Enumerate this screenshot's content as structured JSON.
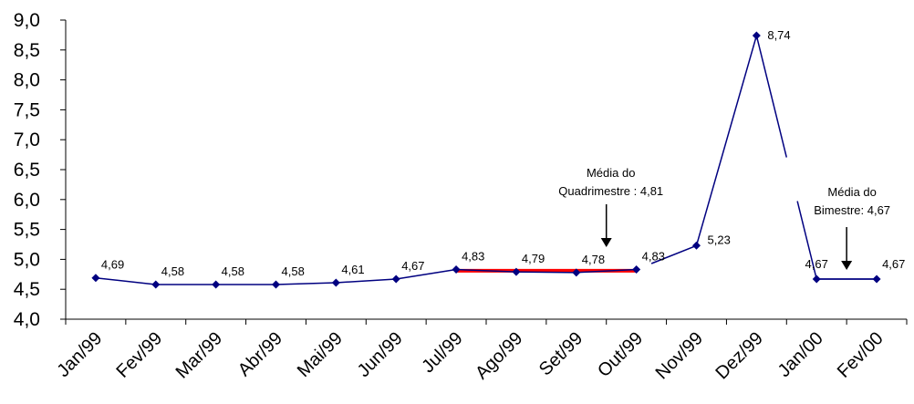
{
  "chart_data": {
    "type": "line",
    "categories": [
      "Jan/99",
      "Fev/99",
      "Mar/99",
      "Abr/99",
      "Mai/99",
      "Jun/99",
      "Jul/99",
      "Ago/99",
      "Set/99",
      "Out/99",
      "Nov/99",
      "Dez/99",
      "Jan/00",
      "Fev/00"
    ],
    "series": [
      {
        "values": [
          4.69,
          4.58,
          4.58,
          4.58,
          4.61,
          4.67,
          4.83,
          4.79,
          4.78,
          4.83,
          5.23,
          8.74,
          4.67,
          4.67
        ],
        "labels": [
          "4,69",
          "4,58",
          "4,58",
          "4,58",
          "4,61",
          "4,67",
          "4,83",
          "4,79",
          "4,78",
          "4,83",
          "5,23",
          "8,74",
          "4,67",
          "4,67"
        ],
        "color": "#000080"
      }
    ],
    "averages": [
      {
        "from_index": 6,
        "to_index": 9,
        "value": 4.81,
        "color": "#ff0000"
      },
      {
        "from_index": 12,
        "to_index": 13,
        "value": 4.67,
        "color": "#000080"
      }
    ],
    "annotations": [
      {
        "lines": [
          "Média do",
          "Quadrimestre : 4,81"
        ],
        "points_to_between": [
          8,
          9
        ]
      },
      {
        "lines": [
          "Média do",
          "Bimestre: 4,67"
        ],
        "points_to_between": [
          12,
          13
        ]
      }
    ],
    "yticks": [
      4.0,
      4.5,
      5.0,
      5.5,
      6.0,
      6.5,
      7.0,
      7.5,
      8.0,
      8.5,
      9.0
    ],
    "ytick_labels": [
      "4,0",
      "4,5",
      "5,0",
      "5,5",
      "6,0",
      "6,5",
      "7,0",
      "7,5",
      "8,0",
      "8,5",
      "9,0"
    ],
    "ylim": [
      4.0,
      9.0
    ],
    "grid": false,
    "legend": "none",
    "title": "",
    "xlabel": "",
    "ylabel": ""
  }
}
